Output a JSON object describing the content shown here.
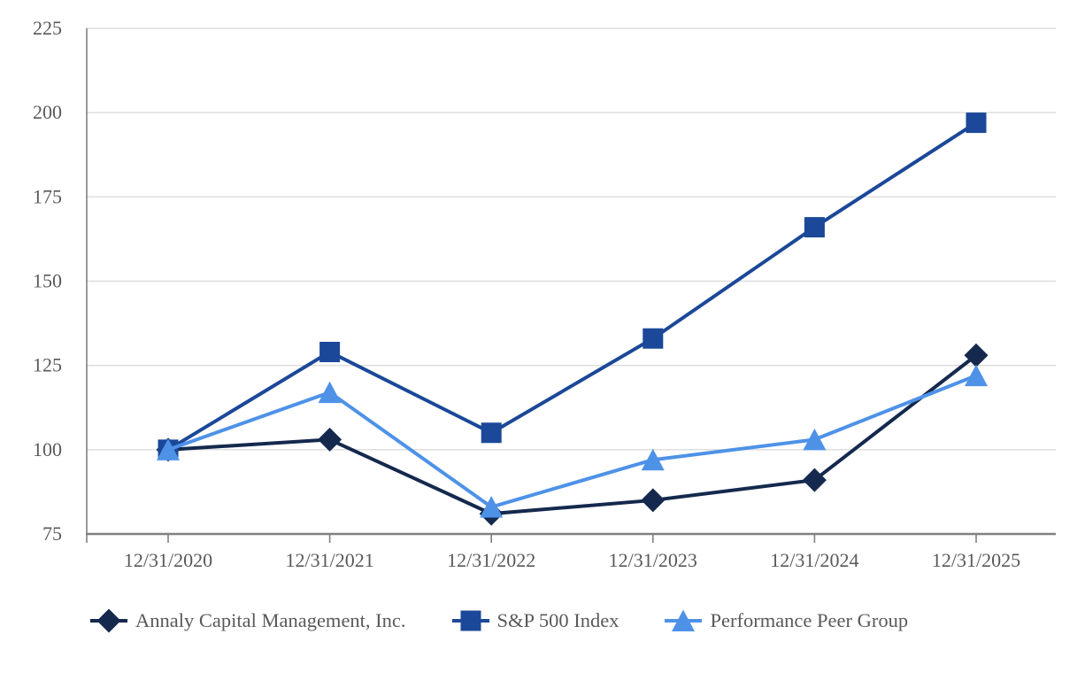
{
  "chart_data": {
    "type": "line",
    "title": "",
    "x_categories": [
      "12/31/2020",
      "12/31/2021",
      "12/31/2022",
      "12/31/2023",
      "12/31/2024",
      "12/31/2025"
    ],
    "series": [
      {
        "name": "Annaly Capital Management, Inc.",
        "marker": "diamond",
        "color": "#14294D",
        "values": [
          100,
          103,
          81,
          85,
          91,
          128
        ]
      },
      {
        "name": "S&P 500 Index",
        "marker": "square",
        "color": "#1B4898",
        "values": [
          100,
          129,
          105,
          133,
          166,
          197
        ]
      },
      {
        "name": "Performance Peer Group",
        "marker": "triangle",
        "color": "#4E92E8",
        "values": [
          100,
          117,
          83,
          97,
          103,
          122
        ]
      }
    ],
    "y_ticks": [
      75,
      100,
      125,
      150,
      175,
      200,
      225
    ],
    "ylim": [
      75,
      225
    ],
    "grid": "horizontal-gridlines",
    "legend_position": "bottom-left",
    "colors": {
      "gridline": "#DCDCDC",
      "axis": "#808080",
      "tick_label": "#595959",
      "legend_text": "#595959",
      "background": "#FFFFFF"
    }
  }
}
